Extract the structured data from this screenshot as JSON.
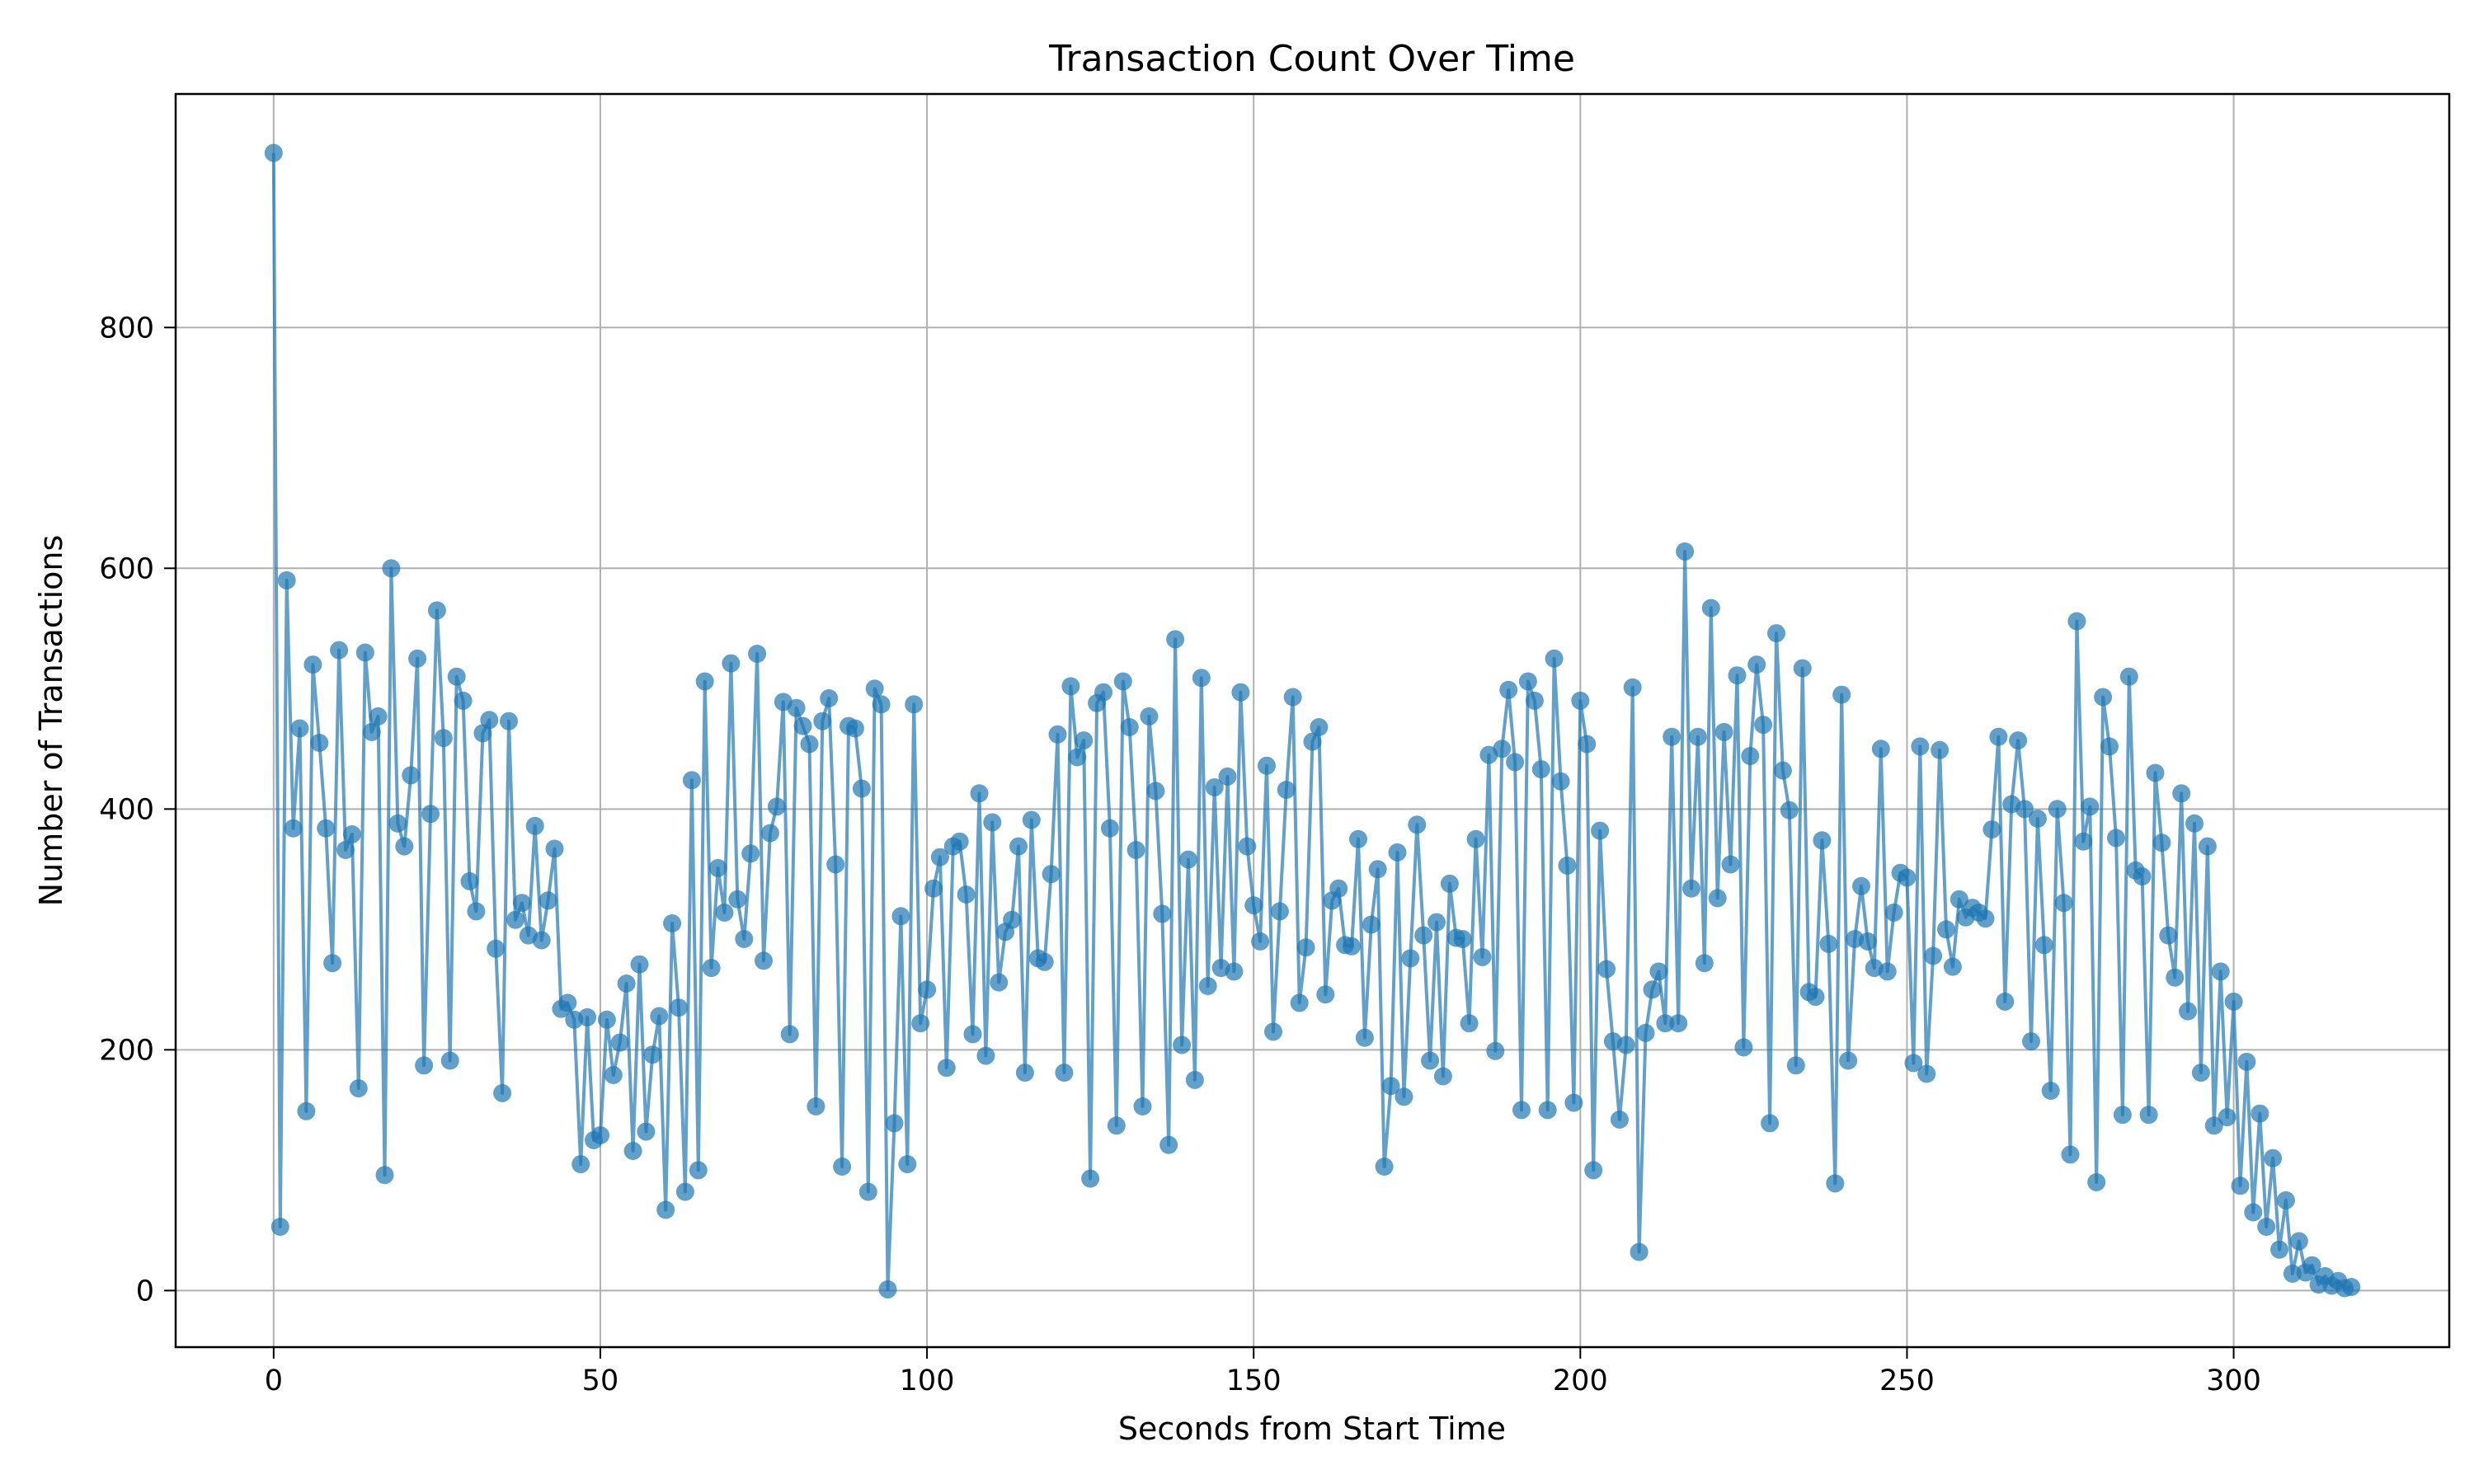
{
  "chart_data": {
    "type": "line",
    "title": "Transaction Count Over Time",
    "xlabel": "Seconds from Start Time",
    "ylabel": "Number of Transactions",
    "xlim": [
      -15,
      333
    ],
    "ylim": [
      -47,
      994
    ],
    "xticks": [
      0,
      50,
      100,
      150,
      200,
      250,
      300
    ],
    "yticks": [
      0,
      200,
      400,
      600,
      800
    ],
    "grid": true,
    "markers": true,
    "series_color": "#1f77b4",
    "series": [
      {
        "x": [
          0,
          1,
          2,
          3,
          4,
          5,
          6,
          7,
          8,
          9,
          10,
          11,
          12,
          13,
          14,
          15,
          16,
          17,
          18,
          19,
          20,
          21,
          22,
          23,
          24,
          25,
          26,
          27,
          28,
          29,
          30,
          31,
          32,
          33,
          34,
          35,
          36,
          37,
          38,
          39,
          40,
          41,
          42,
          43,
          44,
          45,
          46,
          47,
          48,
          49,
          50,
          51,
          52,
          53,
          54,
          55,
          56,
          57,
          58,
          59,
          60,
          61,
          62,
          63,
          64,
          65,
          66,
          67,
          68,
          69,
          70,
          71,
          72,
          73,
          74,
          75,
          76,
          77,
          78,
          79,
          80,
          81,
          82,
          83,
          84,
          85,
          86,
          87,
          88,
          89,
          90,
          91,
          92,
          93,
          94,
          95,
          96,
          97,
          98,
          99,
          100,
          101,
          102,
          103,
          104,
          105,
          106,
          107,
          108,
          109,
          110,
          111,
          112,
          113,
          114,
          115,
          116,
          117,
          118,
          119,
          120,
          121,
          122,
          123,
          124,
          125,
          126,
          127,
          128,
          129,
          130,
          131,
          132,
          133,
          134,
          135,
          136,
          137,
          138,
          139,
          140,
          141,
          142,
          143,
          144,
          145,
          146,
          147,
          148,
          149,
          150,
          151,
          152,
          153,
          154,
          155,
          156,
          157,
          158,
          159,
          160,
          161,
          162,
          163,
          164,
          165,
          166,
          167,
          168,
          169,
          170,
          171,
          172,
          173,
          174,
          175,
          176,
          177,
          178,
          179,
          180,
          181,
          182,
          183,
          184,
          185,
          186,
          187,
          188,
          189,
          190,
          191,
          192,
          193,
          194,
          195,
          196,
          197,
          198,
          199,
          200,
          201,
          202,
          203,
          204,
          205,
          206,
          207,
          208,
          209,
          210,
          211,
          212,
          213,
          214,
          215,
          216,
          217,
          218,
          219,
          220,
          221,
          222,
          223,
          224,
          225,
          226,
          227,
          228,
          229,
          230,
          231,
          232,
          233,
          234,
          235,
          236,
          237,
          238,
          239,
          240,
          241,
          242,
          243,
          244,
          245,
          246,
          247,
          248,
          249,
          250,
          251,
          252,
          253,
          254,
          255,
          256,
          257,
          258,
          259,
          260,
          261,
          262,
          263,
          264,
          265,
          266,
          267,
          268,
          269,
          270,
          271,
          272,
          273,
          274,
          275,
          276,
          277,
          278,
          279,
          280,
          281,
          282,
          283,
          284,
          285,
          286,
          287,
          288,
          289,
          290,
          291,
          292,
          293,
          294,
          295,
          296,
          297,
          298,
          299,
          300,
          301,
          302,
          303,
          304,
          305,
          306,
          307,
          308,
          309,
          310,
          311,
          312,
          313,
          314,
          315,
          316,
          317,
          318
        ],
        "y": [
          945,
          53,
          590,
          384,
          467,
          149,
          520,
          455,
          384,
          272,
          532,
          366,
          379,
          168,
          530,
          464,
          477,
          96,
          600,
          388,
          369,
          428,
          525,
          187,
          396,
          565,
          459,
          191,
          510,
          490,
          340,
          315,
          463,
          474,
          284,
          164,
          473,
          308,
          322,
          295,
          386,
          291,
          324,
          367,
          234,
          239,
          225,
          105,
          227,
          125,
          129,
          225,
          179,
          206,
          255,
          116,
          271,
          132,
          196,
          228,
          67,
          305,
          235,
          82,
          424,
          100,
          506,
          268,
          351,
          314,
          521,
          325,
          292,
          363,
          529,
          274,
          380,
          402,
          489,
          213,
          484,
          469,
          454,
          153,
          473,
          492,
          354,
          103,
          469,
          467,
          417,
          82,
          500,
          487,
          1,
          139,
          311,
          105,
          487,
          222,
          250,
          334,
          360,
          185,
          369,
          373,
          329,
          213,
          413,
          195,
          389,
          256,
          298,
          308,
          369,
          181,
          391,
          276,
          273,
          346,
          462,
          181,
          502,
          443,
          457,
          93,
          488,
          497,
          384,
          137,
          506,
          468,
          366,
          153,
          477,
          415,
          313,
          121,
          541,
          204,
          358,
          175,
          509,
          253,
          418,
          268,
          427,
          265,
          497,
          369,
          320,
          290,
          436,
          215,
          315,
          416,
          493,
          239,
          285,
          456,
          468,
          246,
          324,
          334,
          287,
          286,
          375,
          210,
          304,
          350,
          103,
          170,
          364,
          161,
          276,
          387,
          295,
          191,
          306,
          178,
          338,
          293,
          292,
          222,
          375,
          277,
          445,
          199,
          450,
          499,
          439,
          150,
          506,
          490,
          433,
          150,
          525,
          423,
          353,
          156,
          490,
          454,
          100,
          382,
          267,
          207,
          142,
          204,
          501,
          32,
          214,
          250,
          265,
          222,
          460,
          222,
          614,
          334,
          460,
          272,
          567,
          326,
          464,
          354,
          511,
          202,
          444,
          520,
          470,
          139,
          546,
          432,
          399,
          187,
          517,
          248,
          244,
          374,
          288,
          89,
          495,
          191,
          292,
          336,
          290,
          268,
          450,
          265,
          314,
          347,
          343,
          189,
          452,
          180,
          278,
          449,
          300,
          269,
          325,
          310,
          318,
          314,
          309,
          383,
          460,
          240,
          404,
          457,
          400,
          207,
          392,
          287,
          166,
          400,
          322,
          113,
          556,
          373,
          402,
          90,
          493,
          452,
          376,
          146,
          510,
          349,
          344,
          146,
          430,
          372,
          295,
          260,
          413,
          232,
          388,
          181,
          369,
          137,
          265,
          144,
          240,
          87,
          190,
          65,
          147,
          53,
          110,
          34,
          75,
          14,
          41,
          15,
          21,
          5,
          12,
          4,
          8,
          2,
          3
        ]
      }
    ]
  }
}
